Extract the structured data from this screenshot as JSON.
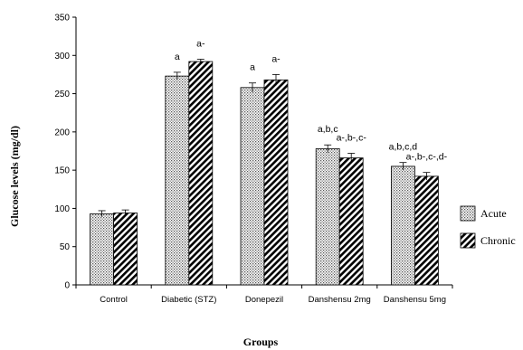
{
  "chart_data": {
    "type": "bar",
    "xlabel": "Groups",
    "ylabel": "Glucose levels (mg/dl)",
    "ylim": [
      0,
      350
    ],
    "yticks": [
      0,
      50,
      100,
      150,
      200,
      250,
      300,
      350
    ],
    "categories": [
      "Control",
      "Diabetic (STZ)",
      "Donepezil",
      "Danshensu 2mg",
      "Danshensu 5mg"
    ],
    "series": [
      {
        "name": "Acute",
        "pattern": "dots",
        "values": [
          93,
          273,
          258,
          178,
          155
        ],
        "errors": [
          4,
          5,
          6,
          5,
          5
        ],
        "annotations": [
          "",
          "a",
          "a",
          "a,b,c",
          "a,b,c,d"
        ]
      },
      {
        "name": "Chronic",
        "pattern": "diagonal-stripes",
        "values": [
          94,
          292,
          268,
          166,
          142
        ],
        "errors": [
          4,
          3,
          7,
          6,
          5
        ],
        "annotations": [
          "",
          "a-",
          "a-",
          "a-,b-,c-",
          "a-,b-,c-,d-"
        ]
      }
    ],
    "legend_position": "right",
    "grid": false
  }
}
